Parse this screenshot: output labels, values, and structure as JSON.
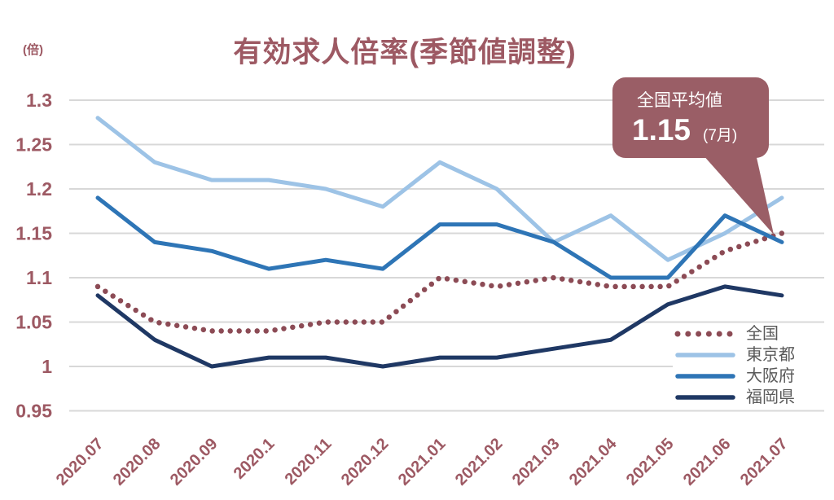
{
  "colors": {
    "title": "#9D5963",
    "axis_labels": "#9D5963",
    "grid": "#D8D8D8",
    "legend_text": "#595959",
    "callout_bg": "#9A5E66",
    "callout_text": "#FFFFFF",
    "national_line": "#8C4B55",
    "tokyo_line": "#9DC3E6",
    "osaka_line": "#2E75B6",
    "fukuoka_line": "#1F3864"
  },
  "callout": {
    "title": "全国平均値",
    "value": "1.15",
    "note": "(7月)"
  },
  "chart_data": {
    "type": "line",
    "title": "有効求人倍率(季節値調整)",
    "ylabel": "(倍)",
    "ylim": [
      0.95,
      1.3
    ],
    "ytick_step": 0.05,
    "y_ticks": [
      "1.3",
      "1.25",
      "1.2",
      "1.15",
      "1.1",
      "1.05",
      "1",
      "0.95"
    ],
    "grid": true,
    "legend_position": "right-bottom",
    "categories": [
      "2020.07",
      "2020.08",
      "2020.09",
      "2020.1",
      "2020.11",
      "2020.12",
      "2021.01",
      "2021.02",
      "2021.03",
      "2021.04",
      "2021.05",
      "2021.06",
      "2021.07"
    ],
    "series": [
      {
        "id": "national",
        "name": "全国",
        "line_style": "dotted",
        "color": "#8C4B55",
        "values": [
          1.09,
          1.05,
          1.04,
          1.04,
          1.05,
          1.05,
          1.1,
          1.09,
          1.1,
          1.09,
          1.09,
          1.13,
          1.15
        ]
      },
      {
        "id": "tokyo",
        "name": "東京都",
        "line_style": "solid",
        "color": "#9DC3E6",
        "values": [
          1.28,
          1.23,
          1.21,
          1.21,
          1.2,
          1.18,
          1.23,
          1.2,
          1.14,
          1.17,
          1.12,
          1.15,
          1.19
        ]
      },
      {
        "id": "osaka",
        "name": "大阪府",
        "line_style": "solid",
        "color": "#2E75B6",
        "values": [
          1.19,
          1.14,
          1.13,
          1.11,
          1.12,
          1.11,
          1.16,
          1.16,
          1.14,
          1.1,
          1.1,
          1.17,
          1.14
        ]
      },
      {
        "id": "fukuoka",
        "name": "福岡県",
        "line_style": "solid",
        "color": "#1F3864",
        "values": [
          1.08,
          1.03,
          1.0,
          1.01,
          1.01,
          1.0,
          1.01,
          1.01,
          1.02,
          1.03,
          1.07,
          1.09,
          1.08
        ]
      }
    ],
    "annotation": {
      "label": "全国平均値",
      "value": "1.15",
      "note": "(7月)",
      "points_to": {
        "series": "全国",
        "category": "2021.07"
      }
    }
  }
}
